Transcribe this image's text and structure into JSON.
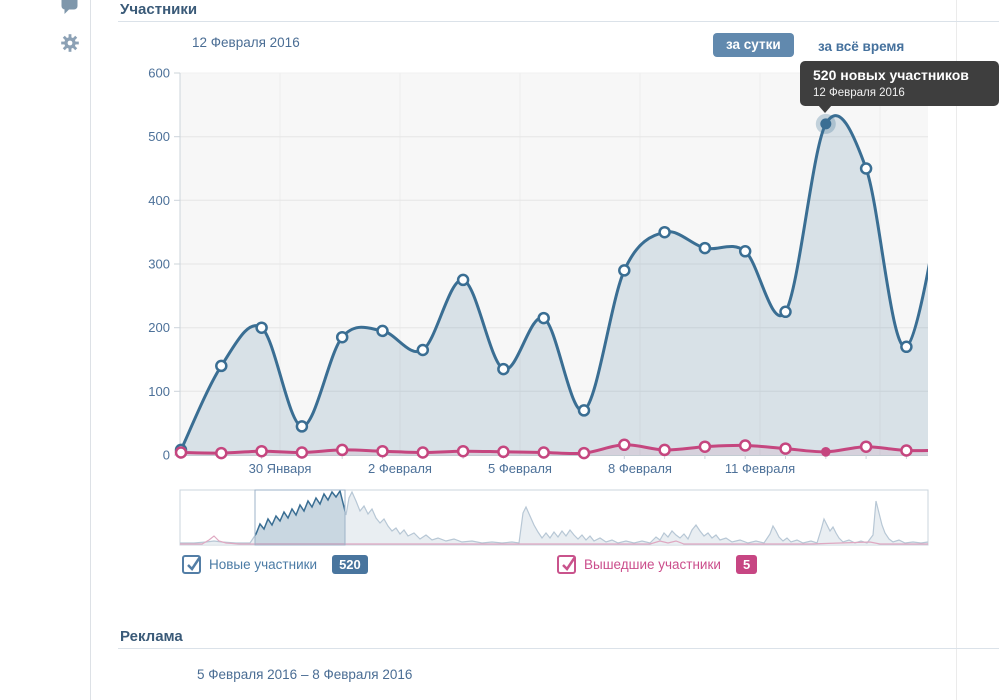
{
  "sidebar": {
    "icons": [
      {
        "name": "comment-icon"
      },
      {
        "name": "gear-icon"
      }
    ]
  },
  "members_section": {
    "title": "Участники",
    "hover_date": "12 Февраля 2016",
    "period_day_label": "за сутки",
    "period_all_label": "за всё время",
    "tooltip": {
      "title": "520 новых участников",
      "date": "12 Февраля 2016"
    },
    "legend": [
      {
        "label": "Новые участники",
        "value": "520",
        "checked": true,
        "color": "#49759e"
      },
      {
        "label": "Вышедшие участники",
        "value": "5",
        "checked": true,
        "color": "#c74683"
      }
    ]
  },
  "ads_section": {
    "title": "Реклама",
    "date_range": "5 Февраля 2016 – 8 Февраля 2016"
  },
  "chart_data": {
    "type": "area",
    "title": "",
    "xlabel": "",
    "ylabel": "",
    "ylim": [
      0,
      600
    ],
    "grid": true,
    "y_ticks": [
      0,
      100,
      200,
      300,
      400,
      500,
      600
    ],
    "x_tick_labels": [
      "30 Января",
      "2 Февраля",
      "5 Февраля",
      "8 Февраля",
      "11 Февраля"
    ],
    "series": [
      {
        "name": "Новые участники",
        "color": "#3a6e93",
        "fill": "rgba(58,110,147,0.16)",
        "values": [
          8,
          140,
          200,
          45,
          185,
          195,
          165,
          275,
          135,
          215,
          70,
          290,
          350,
          325,
          320,
          225,
          520,
          450,
          170
        ],
        "edge_value": 530
      },
      {
        "name": "Вышедшие участники",
        "color": "#c5467f",
        "fill": "rgba(199,70,131,0.10)",
        "values": [
          4,
          3,
          6,
          4,
          8,
          6,
          4,
          6,
          5,
          4,
          3,
          16,
          8,
          13,
          15,
          10,
          5,
          13,
          7
        ],
        "edge_value": 8
      }
    ],
    "highlight_index": 16,
    "highlight_values": {
      "new_members": 520,
      "exited_members": 5
    },
    "navigator": {
      "window": [
        145,
        235
      ],
      "members_line": [
        [
          70,
          483
        ],
        [
          84,
          483
        ],
        [
          96,
          482
        ],
        [
          104,
          481
        ],
        [
          112,
          482
        ],
        [
          126,
          483
        ],
        [
          140,
          483
        ],
        [
          146,
          474
        ],
        [
          150,
          464
        ],
        [
          154,
          469
        ],
        [
          158,
          459
        ],
        [
          162,
          465
        ],
        [
          166,
          456
        ],
        [
          170,
          461
        ],
        [
          174,
          452
        ],
        [
          178,
          458
        ],
        [
          182,
          449
        ],
        [
          186,
          455
        ],
        [
          190,
          445
        ],
        [
          194,
          451
        ],
        [
          198,
          441
        ],
        [
          202,
          447
        ],
        [
          206,
          438
        ],
        [
          210,
          444
        ],
        [
          214,
          434
        ],
        [
          218,
          440
        ],
        [
          222,
          432
        ],
        [
          226,
          437
        ],
        [
          230,
          431
        ],
        [
          233,
          443
        ],
        [
          236,
          455
        ],
        [
          239,
          438
        ],
        [
          242,
          432
        ],
        [
          246,
          441
        ],
        [
          250,
          451
        ],
        [
          254,
          446
        ],
        [
          258,
          454
        ],
        [
          262,
          449
        ],
        [
          266,
          458
        ],
        [
          270,
          463
        ],
        [
          274,
          459
        ],
        [
          278,
          466
        ],
        [
          282,
          471
        ],
        [
          286,
          468
        ],
        [
          290,
          474
        ],
        [
          294,
          470
        ],
        [
          298,
          476
        ],
        [
          304,
          473
        ],
        [
          310,
          479
        ],
        [
          316,
          475
        ],
        [
          322,
          480
        ],
        [
          328,
          478
        ],
        [
          336,
          481
        ],
        [
          344,
          479
        ],
        [
          352,
          482
        ],
        [
          362,
          481
        ],
        [
          372,
          483
        ],
        [
          382,
          482
        ],
        [
          392,
          483
        ],
        [
          402,
          482
        ],
        [
          409,
          483
        ],
        [
          413,
          453
        ],
        [
          416,
          447
        ],
        [
          420,
          456
        ],
        [
          424,
          465
        ],
        [
          428,
          472
        ],
        [
          432,
          478
        ],
        [
          436,
          473
        ],
        [
          440,
          478
        ],
        [
          444,
          472
        ],
        [
          448,
          477
        ],
        [
          452,
          471
        ],
        [
          456,
          476
        ],
        [
          460,
          470
        ],
        [
          464,
          475
        ],
        [
          468,
          479
        ],
        [
          472,
          475
        ],
        [
          476,
          480
        ],
        [
          480,
          476
        ],
        [
          484,
          481
        ],
        [
          490,
          478
        ],
        [
          496,
          482
        ],
        [
          502,
          480
        ],
        [
          508,
          483
        ],
        [
          516,
          481
        ],
        [
          524,
          483
        ],
        [
          532,
          481
        ],
        [
          540,
          483
        ],
        [
          546,
          477
        ],
        [
          550,
          480
        ],
        [
          554,
          473
        ],
        [
          558,
          477
        ],
        [
          562,
          471
        ],
        [
          566,
          475
        ],
        [
          570,
          478
        ],
        [
          574,
          474
        ],
        [
          578,
          479
        ],
        [
          582,
          470
        ],
        [
          586,
          465
        ],
        [
          590,
          471
        ],
        [
          594,
          476
        ],
        [
          598,
          473
        ],
        [
          602,
          478
        ],
        [
          606,
          475
        ],
        [
          610,
          480
        ],
        [
          616,
          478
        ],
        [
          622,
          482
        ],
        [
          630,
          480
        ],
        [
          638,
          483
        ],
        [
          646,
          481
        ],
        [
          654,
          483
        ],
        [
          660,
          474
        ],
        [
          663,
          466
        ],
        [
          666,
          471
        ],
        [
          669,
          477
        ],
        [
          673,
          481
        ],
        [
          677,
          478
        ],
        [
          681,
          482
        ],
        [
          687,
          480
        ],
        [
          693,
          483
        ],
        [
          701,
          481
        ],
        [
          707,
          483
        ],
        [
          711,
          470
        ],
        [
          714,
          459
        ],
        [
          717,
          465
        ],
        [
          720,
          471
        ],
        [
          723,
          467
        ],
        [
          726,
          473
        ],
        [
          729,
          478
        ],
        [
          733,
          482
        ],
        [
          739,
          480
        ],
        [
          745,
          483
        ],
        [
          751,
          481
        ],
        [
          757,
          483
        ],
        [
          763,
          475
        ],
        [
          766,
          441
        ],
        [
          769,
          453
        ],
        [
          772,
          465
        ],
        [
          775,
          473
        ],
        [
          779,
          479
        ],
        [
          783,
          482
        ],
        [
          789,
          480
        ],
        [
          795,
          483
        ],
        [
          803,
          482
        ],
        [
          811,
          483
        ],
        [
          818,
          482
        ]
      ],
      "exits_line": [
        [
          70,
          484
        ],
        [
          92,
          484
        ],
        [
          99,
          480
        ],
        [
          104,
          476
        ],
        [
          109,
          481
        ],
        [
          116,
          483
        ],
        [
          130,
          484
        ],
        [
          240,
          484
        ],
        [
          540,
          484
        ],
        [
          550,
          481
        ],
        [
          558,
          483
        ],
        [
          566,
          481
        ],
        [
          574,
          484
        ],
        [
          700,
          484
        ],
        [
          760,
          482
        ],
        [
          770,
          484
        ],
        [
          818,
          484
        ]
      ]
    }
  }
}
